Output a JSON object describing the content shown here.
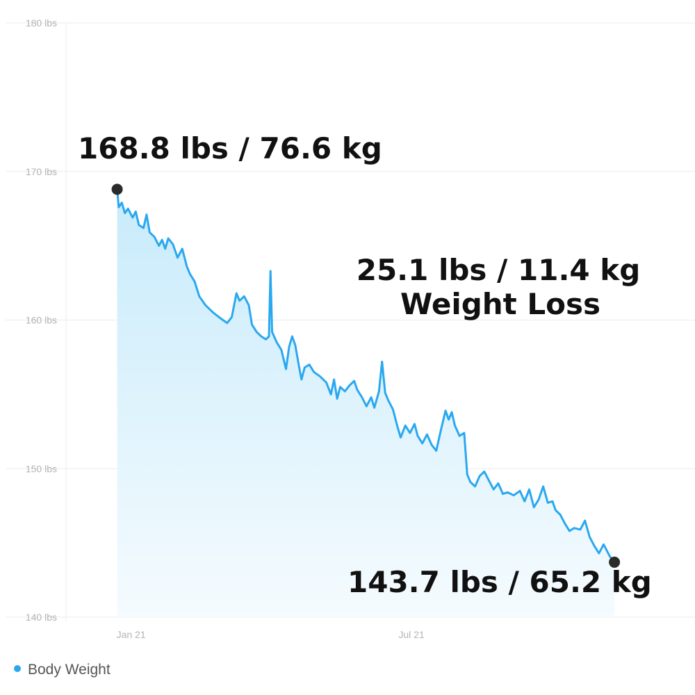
{
  "chart_data": {
    "type": "area",
    "title": "",
    "xlabel": "",
    "ylabel": "",
    "ylim": [
      140,
      180
    ],
    "yticks": [
      {
        "value": 140,
        "label": "140 lbs"
      },
      {
        "value": 150,
        "label": "150 lbs"
      },
      {
        "value": 160,
        "label": "160 lbs"
      },
      {
        "value": 170,
        "label": "170 lbs"
      },
      {
        "value": 180,
        "label": "180 lbs"
      }
    ],
    "xticks": [
      {
        "date": "2021-01-01",
        "label": "Jan 21"
      },
      {
        "date": "2021-07-01",
        "label": "Jul 21"
      }
    ],
    "xlim": [
      "2020-11-20",
      "2021-12-31"
    ],
    "grid": true,
    "legend": "bottom-left",
    "colors": {
      "line": "#29a8f0",
      "fill_top": "#c8ebfb",
      "fill_bottom": "#f4fbfe",
      "grid": "#ececec",
      "marker": "#2b2b2b"
    },
    "series": [
      {
        "name": "Body Weight",
        "points": [
          [
            "2020-12-23",
            168.8
          ],
          [
            "2020-12-24",
            167.6
          ],
          [
            "2020-12-26",
            167.9
          ],
          [
            "2020-12-28",
            167.2
          ],
          [
            "2020-12-30",
            167.5
          ],
          [
            "2021-01-02",
            166.9
          ],
          [
            "2021-01-04",
            167.3
          ],
          [
            "2021-01-06",
            166.4
          ],
          [
            "2021-01-09",
            166.2
          ],
          [
            "2021-01-11",
            167.1
          ],
          [
            "2021-01-13",
            165.9
          ],
          [
            "2021-01-16",
            165.6
          ],
          [
            "2021-01-19",
            165.0
          ],
          [
            "2021-01-21",
            165.4
          ],
          [
            "2021-01-23",
            164.8
          ],
          [
            "2021-01-25",
            165.5
          ],
          [
            "2021-01-28",
            165.1
          ],
          [
            "2021-01-31",
            164.2
          ],
          [
            "2021-02-03",
            164.8
          ],
          [
            "2021-02-06",
            163.6
          ],
          [
            "2021-02-08",
            163.1
          ],
          [
            "2021-02-11",
            162.6
          ],
          [
            "2021-02-14",
            161.6
          ],
          [
            "2021-02-18",
            161.0
          ],
          [
            "2021-02-23",
            160.5
          ],
          [
            "2021-02-28",
            160.1
          ],
          [
            "2021-03-04",
            159.8
          ],
          [
            "2021-03-07",
            160.2
          ],
          [
            "2021-03-10",
            161.8
          ],
          [
            "2021-03-12",
            161.3
          ],
          [
            "2021-03-15",
            161.6
          ],
          [
            "2021-03-18",
            161.0
          ],
          [
            "2021-03-20",
            159.7
          ],
          [
            "2021-03-23",
            159.2
          ],
          [
            "2021-03-26",
            158.9
          ],
          [
            "2021-03-29",
            158.7
          ],
          [
            "2021-03-31",
            158.9
          ],
          [
            "2021-04-01",
            163.3
          ],
          [
            "2021-04-02",
            159.2
          ],
          [
            "2021-04-05",
            158.5
          ],
          [
            "2021-04-08",
            158.0
          ],
          [
            "2021-04-11",
            156.7
          ],
          [
            "2021-04-13",
            158.2
          ],
          [
            "2021-04-15",
            158.9
          ],
          [
            "2021-04-17",
            158.3
          ],
          [
            "2021-04-19",
            157.1
          ],
          [
            "2021-04-21",
            156.0
          ],
          [
            "2021-04-23",
            156.8
          ],
          [
            "2021-04-26",
            157.0
          ],
          [
            "2021-04-29",
            156.5
          ],
          [
            "2021-05-03",
            156.2
          ],
          [
            "2021-05-07",
            155.8
          ],
          [
            "2021-05-10",
            155.0
          ],
          [
            "2021-05-12",
            156.0
          ],
          [
            "2021-05-14",
            154.7
          ],
          [
            "2021-05-16",
            155.5
          ],
          [
            "2021-05-19",
            155.2
          ],
          [
            "2021-05-22",
            155.6
          ],
          [
            "2021-05-25",
            155.9
          ],
          [
            "2021-05-27",
            155.3
          ],
          [
            "2021-05-30",
            154.8
          ],
          [
            "2021-06-02",
            154.2
          ],
          [
            "2021-06-05",
            154.8
          ],
          [
            "2021-06-07",
            154.1
          ],
          [
            "2021-06-10",
            155.2
          ],
          [
            "2021-06-12",
            157.2
          ],
          [
            "2021-06-14",
            155.1
          ],
          [
            "2021-06-16",
            154.6
          ],
          [
            "2021-06-19",
            154.0
          ],
          [
            "2021-06-22",
            152.8
          ],
          [
            "2021-06-24",
            152.1
          ],
          [
            "2021-06-27",
            152.9
          ],
          [
            "2021-06-30",
            152.4
          ],
          [
            "2021-07-03",
            153.0
          ],
          [
            "2021-07-05",
            152.2
          ],
          [
            "2021-07-08",
            151.7
          ],
          [
            "2021-07-11",
            152.3
          ],
          [
            "2021-07-14",
            151.6
          ],
          [
            "2021-07-17",
            151.2
          ],
          [
            "2021-07-20",
            152.6
          ],
          [
            "2021-07-23",
            153.9
          ],
          [
            "2021-07-25",
            153.3
          ],
          [
            "2021-07-27",
            153.8
          ],
          [
            "2021-07-29",
            152.9
          ],
          [
            "2021-08-01",
            152.2
          ],
          [
            "2021-08-04",
            152.4
          ],
          [
            "2021-08-06",
            149.6
          ],
          [
            "2021-08-08",
            149.1
          ],
          [
            "2021-08-11",
            148.8
          ],
          [
            "2021-08-14",
            149.5
          ],
          [
            "2021-08-17",
            149.8
          ],
          [
            "2021-08-20",
            149.2
          ],
          [
            "2021-08-23",
            148.6
          ],
          [
            "2021-08-26",
            149.0
          ],
          [
            "2021-08-29",
            148.3
          ],
          [
            "2021-09-01",
            148.4
          ],
          [
            "2021-09-05",
            148.2
          ],
          [
            "2021-09-09",
            148.5
          ],
          [
            "2021-09-12",
            147.8
          ],
          [
            "2021-09-15",
            148.6
          ],
          [
            "2021-09-18",
            147.4
          ],
          [
            "2021-09-21",
            147.9
          ],
          [
            "2021-09-24",
            148.8
          ],
          [
            "2021-09-27",
            147.7
          ],
          [
            "2021-09-30",
            147.8
          ],
          [
            "2021-10-02",
            147.2
          ],
          [
            "2021-10-05",
            146.9
          ],
          [
            "2021-10-08",
            146.3
          ],
          [
            "2021-10-11",
            145.8
          ],
          [
            "2021-10-14",
            146.0
          ],
          [
            "2021-10-18",
            145.9
          ],
          [
            "2021-10-21",
            146.5
          ],
          [
            "2021-10-24",
            145.4
          ],
          [
            "2021-10-27",
            144.8
          ],
          [
            "2021-10-30",
            144.3
          ],
          [
            "2021-11-02",
            144.9
          ],
          [
            "2021-11-06",
            144.1
          ],
          [
            "2021-11-09",
            143.7
          ]
        ]
      }
    ],
    "annotations": {
      "start": {
        "date": "2020-12-23",
        "value": 168.8,
        "text": "168.8 lbs / 76.6 kg"
      },
      "end": {
        "date": "2021-11-09",
        "value": 143.7,
        "text": "143.7 lbs / 65.2 kg"
      },
      "delta_line1": "25.1 lbs / 11.4 kg",
      "delta_line2": "Weight Loss"
    }
  },
  "legend": {
    "label": "Body Weight",
    "color": "#29a8f0"
  }
}
